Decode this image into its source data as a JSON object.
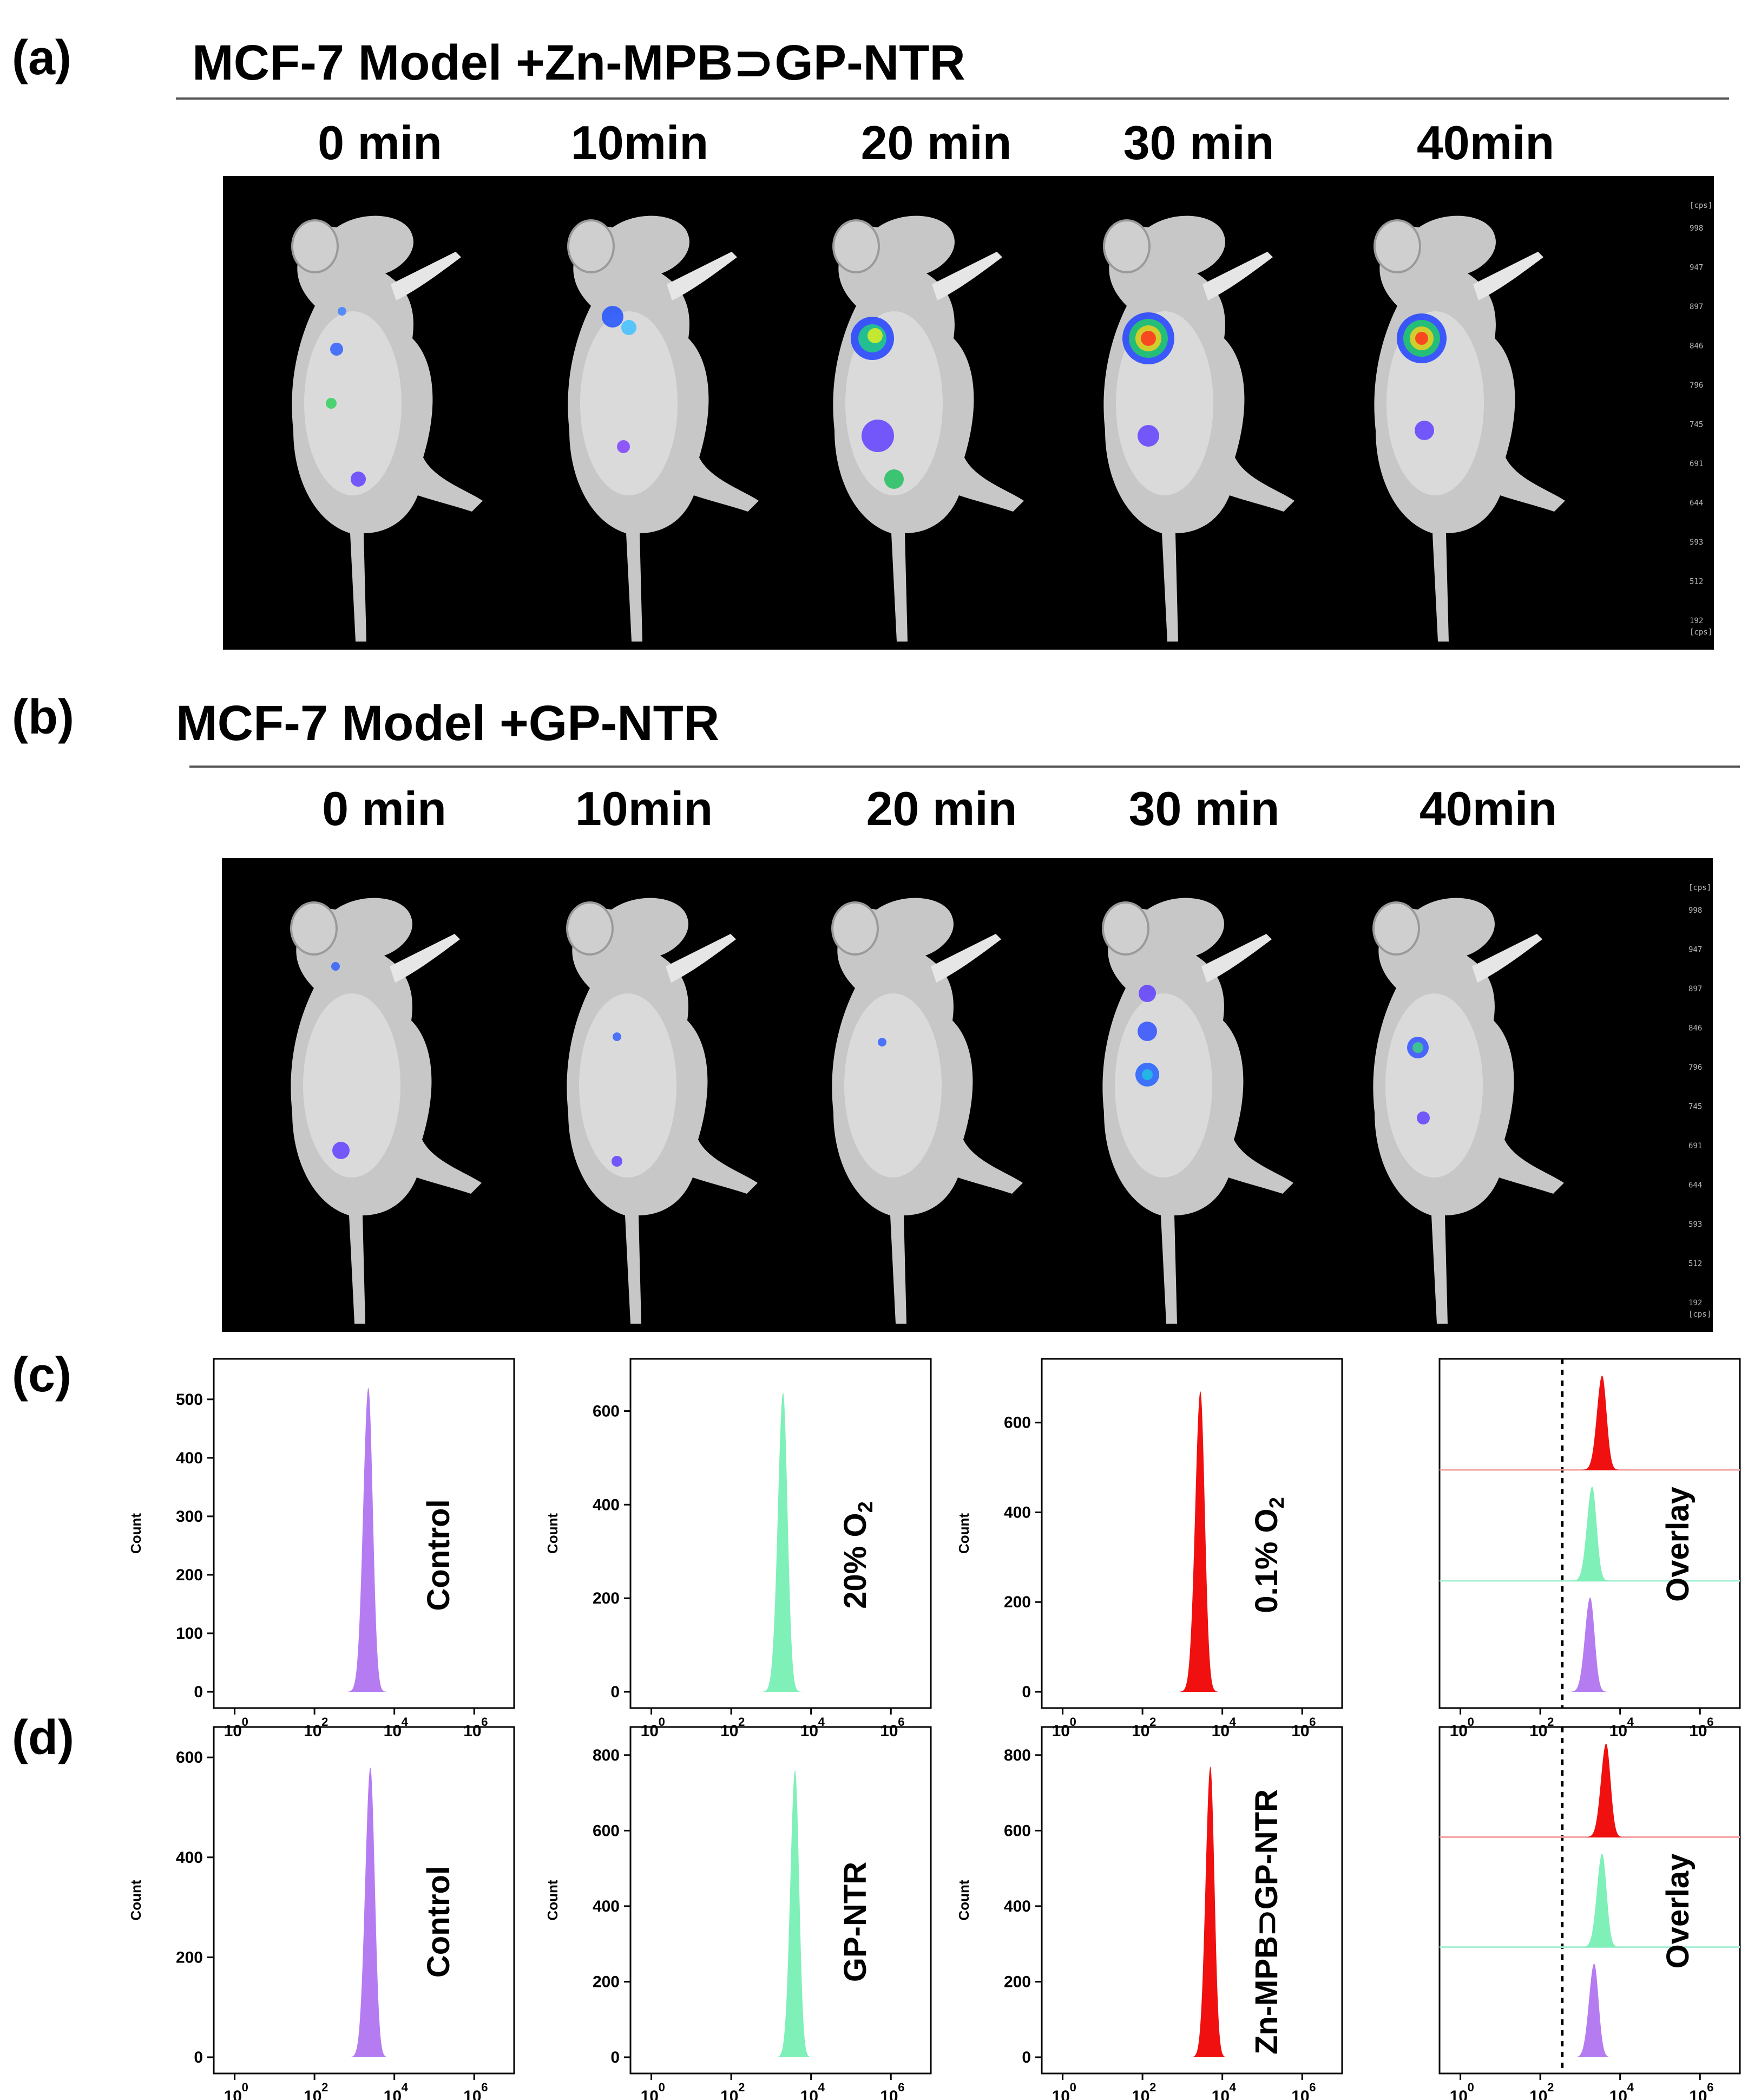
{
  "figure": {
    "panels": [
      {
        "id": "a",
        "label": "(a)",
        "title": "MCF-7 Model +Zn-MPB⊃GP-NTR",
        "time_points": [
          "0 min",
          "10min",
          "20 min",
          "30 min",
          "40min"
        ],
        "colorbar": {
          "unit_label": "[cps]",
          "ticks": [
            "998",
            "947",
            "897",
            "846",
            "796",
            "745",
            "691",
            "644",
            "593",
            "512",
            "192"
          ]
        }
      },
      {
        "id": "b",
        "label": "(b)",
        "title": "MCF-7 Model +GP-NTR",
        "time_points": [
          "0 min",
          "10min",
          "20 min",
          "30 min",
          "40min"
        ],
        "colorbar": {
          "unit_label": "[cps]",
          "ticks": [
            "998",
            "947",
            "897",
            "846",
            "796",
            "745",
            "691",
            "644",
            "593",
            "512",
            "192"
          ]
        }
      }
    ],
    "colors": {
      "control": "#b57cf2",
      "mid": "#7ff0b8",
      "high": "#f01010",
      "overlay_line_high": "#f5a0a0",
      "overlay_line_mid": "#a6f0d2"
    }
  },
  "chart_data": [
    {
      "type": "area",
      "panel": "c",
      "label": "(c)",
      "condition": "Control",
      "ylabel": "Count",
      "yticks": [
        0,
        100,
        200,
        300,
        400,
        500
      ],
      "ylim": [
        0,
        560
      ],
      "xscale": "log",
      "xlim": [
        0.3,
        10000000
      ],
      "xtick_labels": [
        "10",
        "10",
        "10",
        "10"
      ],
      "xtick_exponents": [
        "0",
        "2",
        "4",
        "6"
      ],
      "peak_log10": 3.35,
      "peak_count": 520,
      "width_log10": 0.13,
      "color": "#b57cf2"
    },
    {
      "type": "area",
      "panel": "c",
      "condition": "20% O",
      "condition_subscript": "2",
      "ylabel": "Count",
      "yticks": [
        0,
        200,
        400,
        600
      ],
      "ylim": [
        0,
        700
      ],
      "xscale": "log",
      "xlim": [
        0.3,
        10000000
      ],
      "xtick_labels": [
        "10",
        "10",
        "10",
        "10"
      ],
      "xtick_exponents": [
        "0",
        "2",
        "4",
        "6"
      ],
      "peak_log10": 3.3,
      "peak_count": 640,
      "width_log10": 0.13,
      "color": "#7ff0b8"
    },
    {
      "type": "area",
      "panel": "c",
      "condition": "0.1% O",
      "condition_subscript": "2",
      "ylabel": "Count",
      "yticks": [
        0,
        200,
        400,
        600
      ],
      "ylim": [
        0,
        730
      ],
      "xscale": "log",
      "xlim": [
        0.3,
        10000000
      ],
      "xtick_labels": [
        "10",
        "10",
        "10",
        "10"
      ],
      "xtick_exponents": [
        "0",
        "2",
        "4",
        "6"
      ],
      "peak_log10": 3.45,
      "peak_count": 670,
      "width_log10": 0.13,
      "color": "#f01010"
    },
    {
      "type": "area",
      "panel": "c",
      "condition": "Overlay",
      "overlay": true,
      "xscale": "log",
      "xlim": [
        0.3,
        10000000
      ],
      "xtick_labels": [
        "10",
        "10",
        "10",
        "10"
      ],
      "xtick_exponents": [
        "0",
        "2",
        "4",
        "6"
      ],
      "gate_log10": 2.55,
      "series": [
        {
          "name": "Control",
          "peak_log10": 3.25,
          "color": "#b57cf2"
        },
        {
          "name": "20% O2",
          "peak_log10": 3.3,
          "color": "#7ff0b8"
        },
        {
          "name": "0.1% O2",
          "peak_log10": 3.55,
          "color": "#f01010"
        }
      ]
    },
    {
      "type": "area",
      "panel": "d",
      "label": "(d)",
      "condition": "Control",
      "ylabel": "Count",
      "yticks": [
        0,
        200,
        400,
        600
      ],
      "ylim": [
        0,
        650
      ],
      "xscale": "log",
      "xlim": [
        0.3,
        10000000
      ],
      "xtick_labels": [
        "10",
        "10",
        "10",
        "10"
      ],
      "xtick_exponents": [
        "0",
        "2",
        "4",
        "6"
      ],
      "peak_log10": 3.4,
      "peak_count": 580,
      "width_log10": 0.13,
      "color": "#b57cf2"
    },
    {
      "type": "area",
      "panel": "d",
      "condition": "GP-NTR",
      "ylabel": "Count",
      "yticks": [
        0,
        200,
        400,
        600,
        800
      ],
      "ylim": [
        0,
        860
      ],
      "xscale": "log",
      "xlim": [
        0.3,
        10000000
      ],
      "xtick_labels": [
        "10",
        "10",
        "10",
        "10"
      ],
      "xtick_exponents": [
        "0",
        "2",
        "4",
        "6"
      ],
      "peak_log10": 3.6,
      "peak_count": 760,
      "width_log10": 0.12,
      "color": "#7ff0b8"
    },
    {
      "type": "area",
      "panel": "d",
      "condition": "Zn-MPB⊃GP-NTR",
      "ylabel": "Count",
      "yticks": [
        0,
        200,
        400,
        600,
        800
      ],
      "ylim": [
        0,
        860
      ],
      "xscale": "log",
      "xlim": [
        0.3,
        10000000
      ],
      "xtick_labels": [
        "10",
        "10",
        "10",
        "10"
      ],
      "xtick_exponents": [
        "0",
        "2",
        "4",
        "6"
      ],
      "peak_log10": 3.7,
      "peak_count": 770,
      "width_log10": 0.12,
      "color": "#f01010"
    },
    {
      "type": "area",
      "panel": "d",
      "condition": "Overlay",
      "overlay": true,
      "xscale": "log",
      "xlim": [
        0.3,
        10000000
      ],
      "xtick_labels": [
        "10",
        "10",
        "10",
        "10"
      ],
      "xtick_exponents": [
        "0",
        "2",
        "4",
        "6"
      ],
      "gate_log10": 2.55,
      "series": [
        {
          "name": "Control",
          "peak_log10": 3.35,
          "color": "#b57cf2"
        },
        {
          "name": "GP-NTR",
          "peak_log10": 3.55,
          "color": "#7ff0b8"
        },
        {
          "name": "Zn-MPB⊃GP-NTR",
          "peak_log10": 3.65,
          "color": "#f01010"
        }
      ]
    }
  ]
}
